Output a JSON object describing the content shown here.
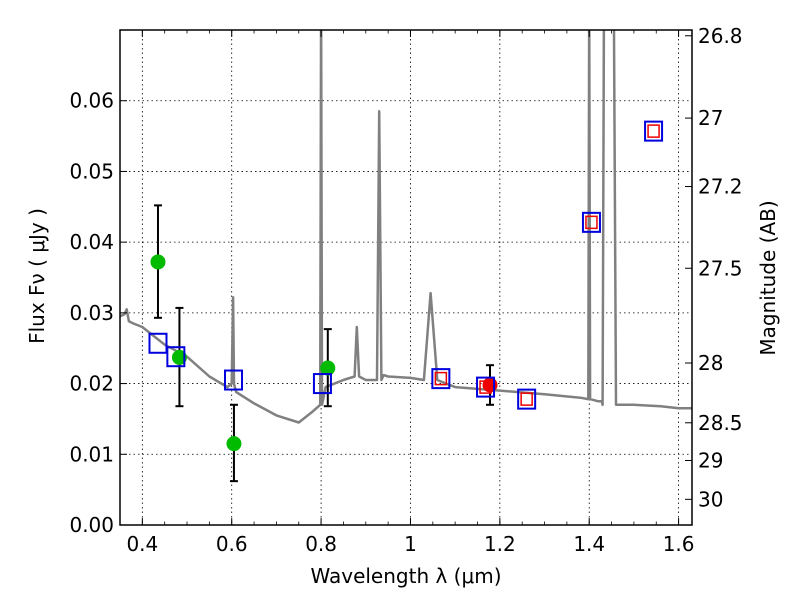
{
  "chart_data": {
    "type": "scatter",
    "xlabel": "Wavelength  λ (μm)",
    "ylabel": "Flux  Fν  ( μJy )",
    "y2label": "Magnitude (AB)",
    "xlim": [
      0.35,
      1.63
    ],
    "ylim": [
      0.0,
      0.07
    ],
    "grid": true,
    "x_ticks": [
      0.4,
      0.6,
      0.8,
      1.0,
      1.2,
      1.4,
      1.6
    ],
    "x_tick_labels": [
      "0.4",
      "0.6",
      "0.8",
      "1",
      "1.2",
      "1.4",
      "1.6"
    ],
    "y_ticks": [
      0.0,
      0.01,
      0.02,
      0.03,
      0.04,
      0.05,
      0.06
    ],
    "y_tick_labels": [
      "0.00",
      "0.01",
      "0.02",
      "0.03",
      "0.04",
      "0.05",
      "0.06"
    ],
    "y2_ticks": [
      26.8,
      27.0,
      27.2,
      27.5,
      28.0,
      28.5,
      29.0,
      30.0
    ],
    "y2_tick_labels": [
      "26.8",
      "27",
      "27.2",
      "27.5",
      "28",
      "28.5",
      "29",
      "30"
    ],
    "colors": {
      "template": "#808080",
      "photometry": "#00bb00",
      "highlight": "#ee0000",
      "model_box": "#0000dd",
      "model_inner": "#ee0000",
      "errorbar": "#000000",
      "grid": "#000000"
    },
    "series": [
      {
        "kind": "line",
        "x": [
          0.35,
          0.36,
          0.365,
          0.37,
          0.38,
          0.4,
          0.42,
          0.45,
          0.5,
          0.55,
          0.59,
          0.6,
          0.603,
          0.605,
          0.607,
          0.61,
          0.65,
          0.7,
          0.75,
          0.78,
          0.798,
          0.8,
          0.802,
          0.81,
          0.83,
          0.85,
          0.875,
          0.88,
          0.885,
          0.9,
          0.925,
          0.93,
          0.935,
          0.94,
          0.95,
          1.0,
          1.03,
          1.045,
          1.06,
          1.08,
          1.1,
          1.2,
          1.3,
          1.38,
          1.398,
          1.4,
          1.402,
          1.42,
          1.428,
          1.43,
          1.433,
          1.435,
          1.445,
          1.455,
          1.46,
          1.5,
          1.56,
          1.6,
          1.63
        ],
        "y": [
          0.0295,
          0.0298,
          0.0305,
          0.0288,
          0.0285,
          0.028,
          0.027,
          0.0255,
          0.0238,
          0.021,
          0.0195,
          0.02,
          0.0322,
          0.02,
          0.0195,
          0.0188,
          0.0172,
          0.0155,
          0.0145,
          0.016,
          0.017,
          0.075,
          0.017,
          0.0195,
          0.02,
          0.0205,
          0.021,
          0.028,
          0.021,
          0.0205,
          0.0205,
          0.0585,
          0.0205,
          0.0212,
          0.021,
          0.0208,
          0.0205,
          0.0328,
          0.0205,
          0.02,
          0.0195,
          0.019,
          0.0185,
          0.018,
          0.0178,
          0.075,
          0.0178,
          0.0175,
          0.0175,
          0.017,
          0.075,
          0.075,
          0.075,
          0.075,
          0.017,
          0.017,
          0.0168,
          0.0165,
          0.0165
        ]
      },
      {
        "kind": "points",
        "x": [
          0.435,
          0.483,
          0.605,
          0.815
        ],
        "y": [
          0.0372,
          0.0237,
          0.0115,
          0.0222
        ],
        "yerr_low": [
          0.0293,
          0.0168,
          0.0062,
          0.0168
        ],
        "yerr_high": [
          0.0452,
          0.0307,
          0.017,
          0.0277
        ]
      },
      {
        "kind": "highlight_point",
        "x": [
          1.178
        ],
        "y": [
          0.0198
        ],
        "yerr_low": [
          0.017
        ],
        "yerr_high": [
          0.0226
        ]
      },
      {
        "kind": "model_boxes",
        "x": [
          0.435,
          0.475,
          0.604,
          0.803,
          1.068,
          1.168,
          1.26,
          1.405,
          1.544
        ],
        "y": [
          0.0257,
          0.0238,
          0.0205,
          0.02,
          0.0207,
          0.0195,
          0.0178,
          0.0428,
          0.0557
        ],
        "inner_box": [
          false,
          false,
          false,
          false,
          true,
          true,
          true,
          true,
          true
        ]
      }
    ]
  }
}
